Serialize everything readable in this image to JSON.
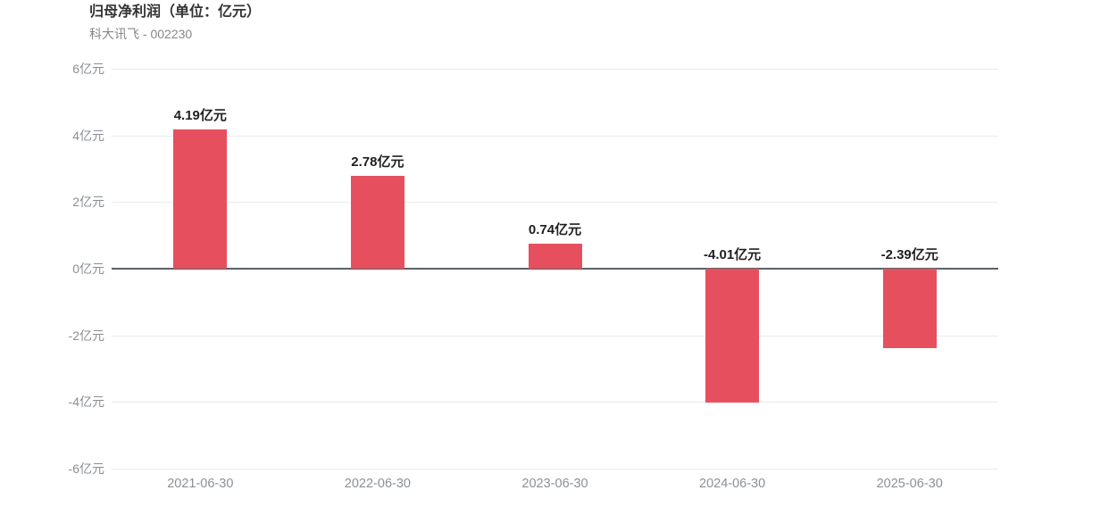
{
  "header": {
    "title": "归母净利润（单位：亿元）",
    "subtitle": "科大讯飞 - 002230"
  },
  "chart_data": {
    "type": "bar",
    "title": "归母净利润（单位：亿元）",
    "subtitle": "科大讯飞 - 002230",
    "categories": [
      "2021-06-30",
      "2022-06-30",
      "2023-06-30",
      "2024-06-30",
      "2025-06-30"
    ],
    "values": [
      4.19,
      2.78,
      0.74,
      -4.01,
      -2.39
    ],
    "data_labels": [
      "4.19亿元",
      "2.78亿元",
      "0.74亿元",
      "-4.01亿元",
      "-2.39亿元"
    ],
    "unit": "亿元",
    "ylabel": "",
    "xlabel": "",
    "ylim": [
      -6,
      6
    ],
    "yticks": [
      6,
      4,
      2,
      0,
      -2,
      -4,
      -6
    ],
    "ytick_labels": [
      "6亿元",
      "4亿元",
      "2亿元",
      "0亿元",
      "-2亿元",
      "-4亿元",
      "-6亿元"
    ],
    "grid": "horizontal",
    "legend": "none",
    "bar_color": "#e6505e"
  }
}
